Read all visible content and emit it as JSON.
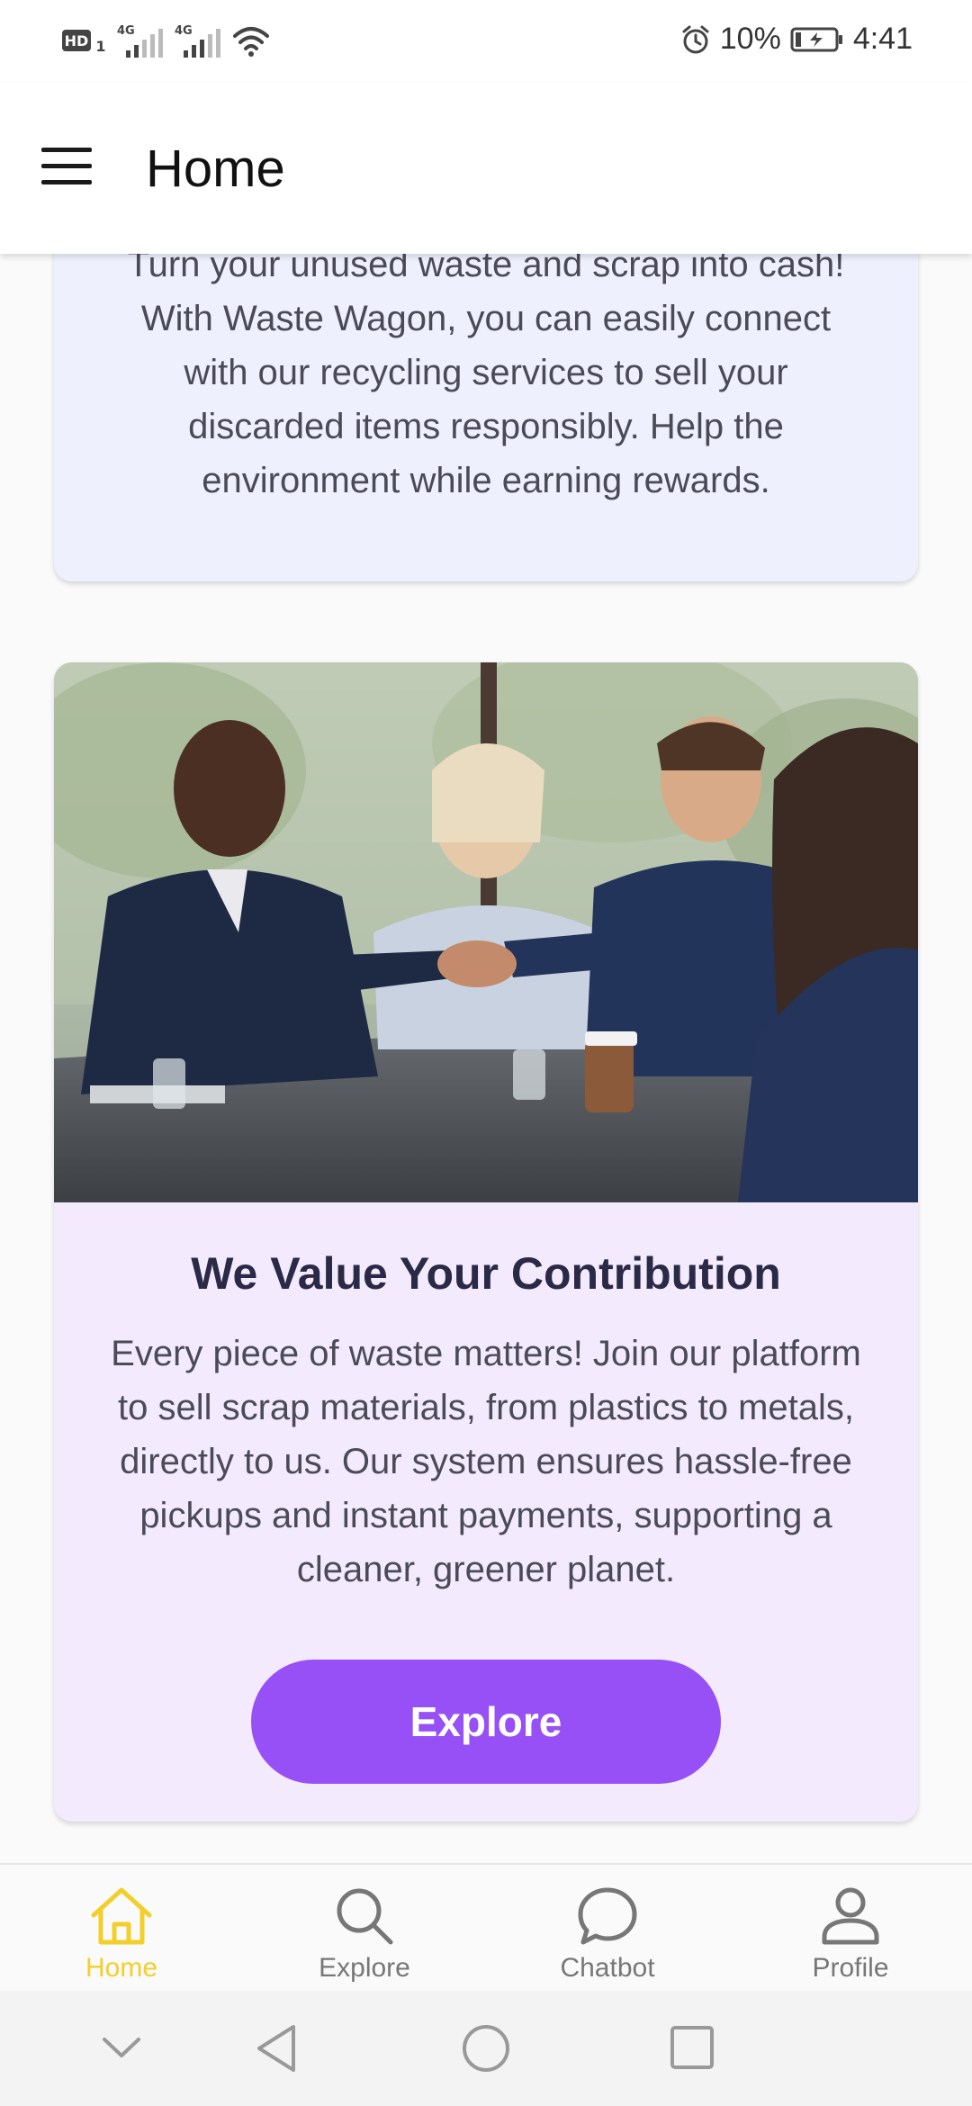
{
  "status_bar": {
    "hd_badge": "HD",
    "sim_slot": "1",
    "network_1": "4G",
    "network_2": "4G",
    "battery_percent": "10%",
    "time": "4:41",
    "icons": [
      "hd-icon",
      "signal-icon",
      "signal-icon",
      "wifi-icon",
      "alarm-icon",
      "battery-charging-icon"
    ]
  },
  "app_bar": {
    "title": "Home",
    "menu_icon": "hamburger-menu-icon"
  },
  "card1": {
    "text": "Turn your unused waste and scrap into cash! With Waste Wagon, you can easily connect with our recycling services to sell your discarded items responsibly. Help the environment while earning rewards."
  },
  "card2": {
    "image": "business-handshake-photo",
    "title": "We Value Your Contribution",
    "text": "Every piece of waste matters! Join our platform to sell scrap materials, from plastics to metals, directly to us. Our system ensures hassle-free pickups and instant payments, supporting a cleaner, greener planet.",
    "button_label": "Explore"
  },
  "bottom_nav": {
    "items": [
      {
        "label": "Home",
        "icon": "home-icon",
        "active": true
      },
      {
        "label": "Explore",
        "icon": "search-icon",
        "active": false
      },
      {
        "label": "Chatbot",
        "icon": "chat-bubble-icon",
        "active": false
      },
      {
        "label": "Profile",
        "icon": "person-icon",
        "active": false
      }
    ]
  },
  "colors": {
    "accent": "#9650f5",
    "active_nav": "#f2cf2a",
    "card1_bg": "#eef1fd",
    "card2_bg": "#f4eafe",
    "title_text": "#2a2946"
  }
}
